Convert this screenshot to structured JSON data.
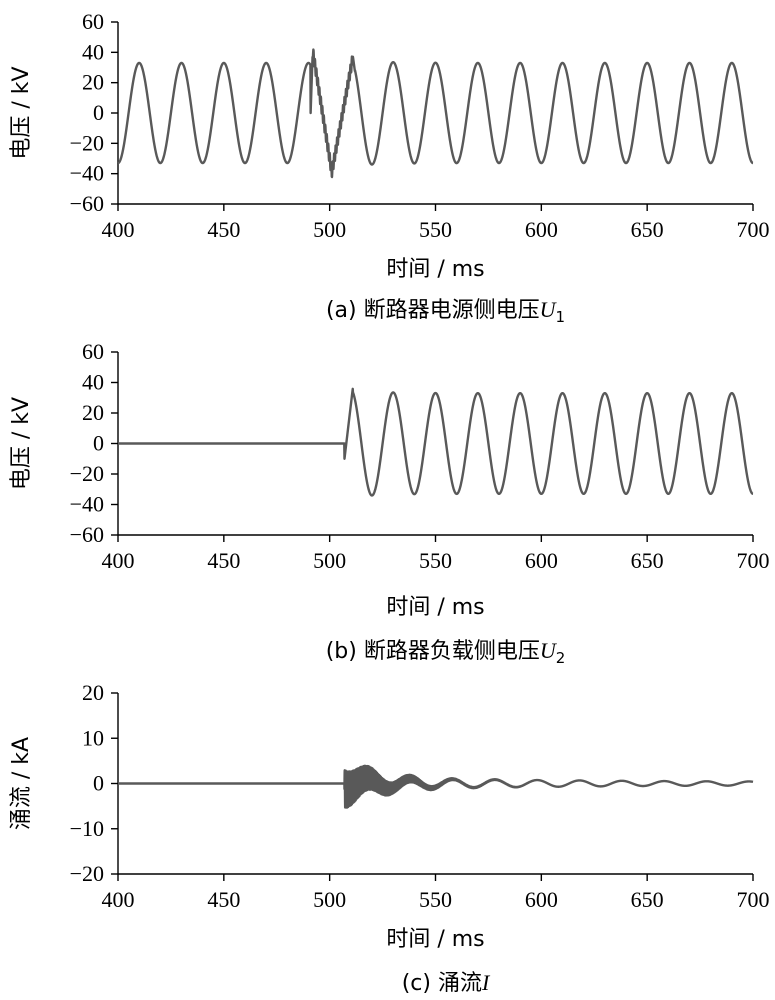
{
  "chart_data": [
    {
      "type": "line",
      "caption_prefix": "(a)",
      "caption_text": "断路器电源侧电压",
      "caption_symbol": "U",
      "caption_subscript": "1",
      "xlabel": "时间 / ms",
      "ylabel": "电压 / kV",
      "xlim": [
        400,
        700
      ],
      "ylim": [
        -60,
        60
      ],
      "xticks": [
        "400",
        "450",
        "500",
        "550",
        "600",
        "650",
        "700"
      ],
      "yticks": [
        "60",
        "40",
        "20",
        "0",
        "−20",
        "−40",
        "−60"
      ],
      "grid": false,
      "legend": "none",
      "color": "#595959",
      "series": [
        {
          "signal": "sinusoid",
          "frequency_hz": 50,
          "amplitude_kv": 33,
          "transient_ms": [
            491,
            512
          ],
          "transient_peaks_kv": [
            41,
            -39,
            37
          ],
          "x": [
            400,
            410,
            420,
            430,
            440,
            450,
            460,
            470,
            480,
            490,
            492,
            501,
            511,
            520,
            530,
            540,
            550,
            560,
            570,
            580,
            590,
            600,
            610,
            620,
            630,
            640,
            650,
            660,
            670,
            680,
            690,
            700
          ],
          "values": [
            -27,
            33,
            -33,
            33,
            -33,
            33,
            -33,
            33,
            -33,
            33,
            41,
            -39,
            37,
            -35,
            34,
            -34,
            34,
            -33,
            34,
            -33,
            34,
            -33,
            33,
            -33,
            33,
            -33,
            34,
            -33,
            34,
            -33,
            34,
            -29
          ]
        }
      ]
    },
    {
      "type": "line",
      "caption_prefix": "(b)",
      "caption_text": "断路器负载侧电压",
      "caption_symbol": "U",
      "caption_subscript": "2",
      "xlabel": "时间 / ms",
      "ylabel": "电压 / kV",
      "xlim": [
        400,
        700
      ],
      "ylim": [
        -60,
        60
      ],
      "xticks": [
        "400",
        "450",
        "500",
        "550",
        "600",
        "650",
        "700"
      ],
      "yticks": [
        "60",
        "40",
        "20",
        "0",
        "−20",
        "−40",
        "−60"
      ],
      "grid": false,
      "legend": "none",
      "color": "#595959",
      "series": [
        {
          "signal": "sinusoid",
          "frequency_hz": 50,
          "amplitude_kv": 33,
          "zero_until_ms": 507,
          "transient_ms": [
            507,
            522
          ],
          "transient_peaks_kv": [
            -10,
            37,
            -36
          ],
          "x": [
            400,
            506,
            507,
            511,
            521,
            531,
            541,
            551,
            561,
            571,
            581,
            591,
            601,
            611,
            621,
            631,
            641,
            651,
            661,
            671,
            681,
            691,
            700
          ],
          "values": [
            0,
            0,
            -10,
            37,
            -36,
            35,
            -34,
            34,
            -33,
            34,
            -33,
            34,
            -33,
            33,
            -33,
            33,
            -33,
            34,
            -33,
            34,
            -33,
            34,
            -29
          ]
        }
      ]
    },
    {
      "type": "line",
      "caption_prefix": "(c)",
      "caption_text": "涌流",
      "caption_symbol": "I",
      "caption_subscript": "",
      "xlabel": "时间 / ms",
      "ylabel": "涌流 / kA",
      "xlim": [
        400,
        700
      ],
      "ylim": [
        -20,
        20
      ],
      "xticks": [
        "400",
        "450",
        "500",
        "550",
        "600",
        "650",
        "700"
      ],
      "yticks": [
        "20",
        "10",
        "0",
        "−10",
        "−20"
      ],
      "grid": false,
      "legend": "none",
      "color": "#595959",
      "series": [
        {
          "signal": "decaying_oscillation",
          "zero_until_ms": 507,
          "hf_envelope_kv": [
            [
              507,
              4.2
            ],
            [
              515,
              3.0
            ],
            [
              530,
              1.2
            ],
            [
              545,
              0.5
            ],
            [
              560,
              0.15
            ],
            [
              600,
              0
            ]
          ],
          "lf_frequency_hz": 50,
          "lf_envelope_ka": [
            [
              507,
              1.3
            ],
            [
              550,
              1.0
            ],
            [
              600,
              0.75
            ],
            [
              650,
              0.55
            ],
            [
              700,
              0.45
            ]
          ],
          "x": [
            400,
            506,
            507,
            510,
            520,
            530,
            540,
            550,
            560,
            570,
            580,
            590,
            600,
            610,
            620,
            630,
            640,
            650,
            660,
            670,
            680,
            690,
            700
          ],
          "values": [
            0,
            0,
            4.2,
            -4,
            2.5,
            -1.8,
            1.2,
            1.0,
            -0.9,
            0.9,
            -0.8,
            0.8,
            -0.7,
            0.7,
            -0.6,
            0.6,
            -0.6,
            0.5,
            -0.5,
            0.5,
            -0.5,
            0.4,
            -0.3
          ]
        }
      ]
    }
  ]
}
